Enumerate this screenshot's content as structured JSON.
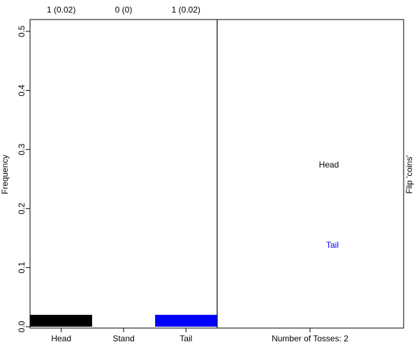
{
  "chart_data": {
    "type": "bar",
    "categories": [
      "Head",
      "Stand",
      "Tail"
    ],
    "values": [
      0.02,
      0,
      0.02
    ],
    "value_labels": [
      "1 (0.02)",
      "0 (0)",
      "1 (0.02)"
    ],
    "colors": [
      "#000000",
      "#ffffff",
      "#0000ff"
    ],
    "ylabel": "Frequency",
    "ylim": [
      0,
      0.52
    ],
    "yticks": [
      {
        "value": 0,
        "label": "0.0"
      },
      0.1,
      0.2,
      0.3,
      0.4,
      0.5
    ]
  },
  "side_panel": {
    "xlabel": "Number of Tosses: 2",
    "ylabel": "Flip 'coins'",
    "labels": [
      {
        "text": "Head",
        "color": "#000000"
      },
      {
        "text": "Tail",
        "color": "#0000ff"
      }
    ]
  }
}
